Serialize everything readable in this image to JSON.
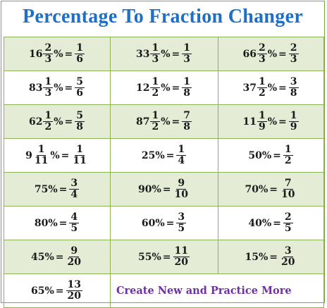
{
  "title": "Percentage To Fraction Changer",
  "colors": {
    "title": "#1e6fc8",
    "border": "#8cb457",
    "shade": "#e4ecd5",
    "link": "#7030a0"
  },
  "rows": [
    {
      "shaded": true,
      "cells": [
        {
          "w": "16",
          "pn": "2",
          "pd": "3",
          "fn": "1",
          "fd": "6"
        },
        {
          "w": "33",
          "pn": "1",
          "pd": "3",
          "fn": "1",
          "fd": "3"
        },
        {
          "w": "66",
          "pn": "2",
          "pd": "3",
          "fn": "2",
          "fd": "3"
        }
      ]
    },
    {
      "shaded": false,
      "cells": [
        {
          "w": "83",
          "pn": "1",
          "pd": "3",
          "fn": "5",
          "fd": "6"
        },
        {
          "w": "12",
          "pn": "1",
          "pd": "2",
          "fn": "1",
          "fd": "8"
        },
        {
          "w": "37",
          "pn": "1",
          "pd": "2",
          "fn": "3",
          "fd": "8"
        }
      ]
    },
    {
      "shaded": true,
      "cells": [
        {
          "w": "62",
          "pn": "1",
          "pd": "2",
          "fn": "5",
          "fd": "8"
        },
        {
          "w": "87",
          "pn": "1",
          "pd": "2",
          "fn": "7",
          "fd": "8"
        },
        {
          "w": "11",
          "pn": "1",
          "pd": "9",
          "fn": "1",
          "fd": "9"
        }
      ]
    },
    {
      "shaded": false,
      "cells": [
        {
          "w": "9",
          "pn": "1",
          "pd": "11",
          "fn": "1",
          "fd": "11"
        },
        {
          "w": "25",
          "fn": "1",
          "fd": "4"
        },
        {
          "w": "50",
          "fn": "1",
          "fd": "2"
        }
      ]
    },
    {
      "shaded": true,
      "cells": [
        {
          "w": "75",
          "fn": "3",
          "fd": "4"
        },
        {
          "w": "90",
          "fn": "9",
          "fd": "10"
        },
        {
          "w": "70",
          "fn": "7",
          "fd": "10"
        }
      ]
    },
    {
      "shaded": false,
      "cells": [
        {
          "w": "80",
          "fn": "4",
          "fd": "5"
        },
        {
          "w": "60",
          "fn": "3",
          "fd": "5"
        },
        {
          "w": "40",
          "fn": "2",
          "fd": "5"
        }
      ]
    },
    {
      "shaded": true,
      "cells": [
        {
          "w": "45",
          "fn": "9",
          "fd": "20"
        },
        {
          "w": "55",
          "fn": "11",
          "fd": "20"
        },
        {
          "w": "15",
          "fn": "3",
          "fd": "20"
        }
      ]
    },
    {
      "shaded": false,
      "cells": [
        {
          "w": "65",
          "fn": "13",
          "fd": "20"
        }
      ]
    }
  ],
  "practice_link": "Create New and Practice More"
}
